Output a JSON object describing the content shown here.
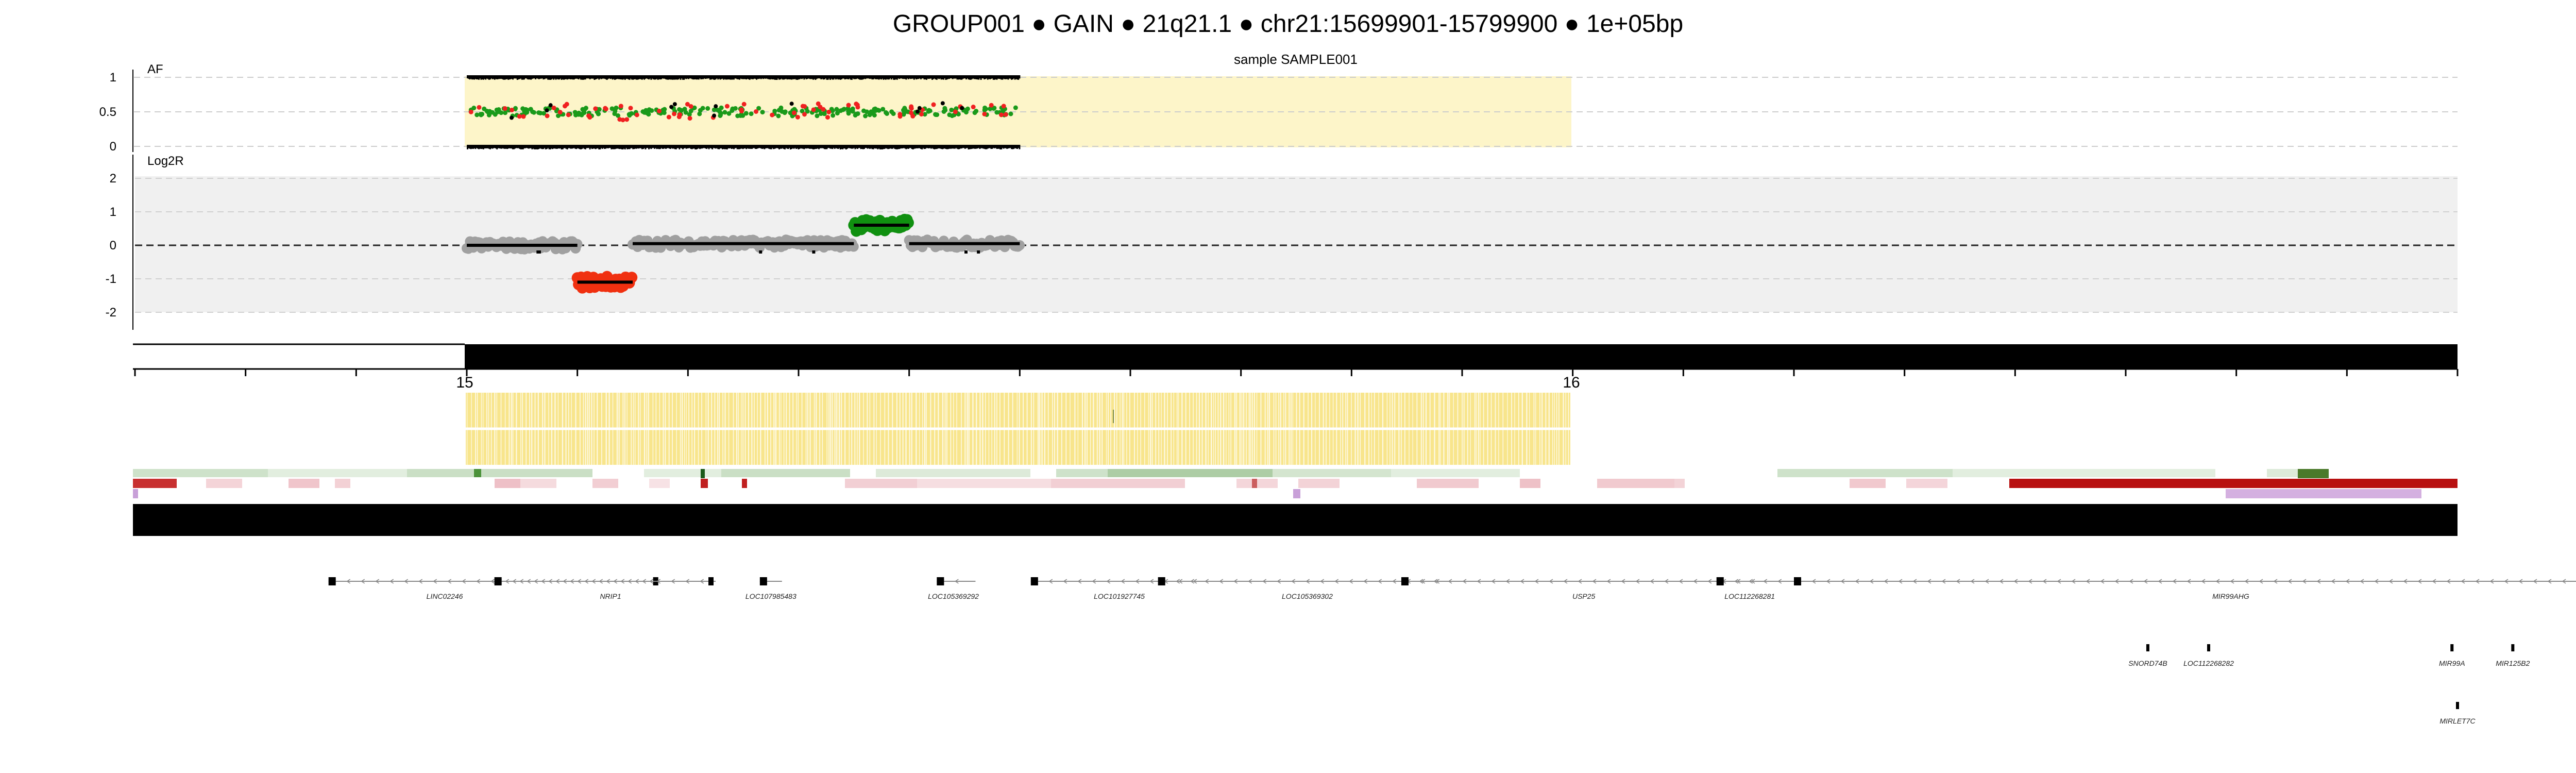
{
  "page": {
    "title": "GROUP001  ●  GAIN ● 21q21.1 ● chr21:15699901-15799900 ● 1e+05bp",
    "sample_label": "sample SAMPLE001"
  },
  "colors": {
    "af_band": "#fdf5c9",
    "af_green": "#1a9a1a",
    "af_red": "#f02020",
    "cn_neutral": "#a0a0a0",
    "cn_loss": "#f03010",
    "cn_gain": "#109010",
    "log2r_band": "#f0f0f0",
    "segment": "#000000",
    "bars_yellow": "#f8e58c"
  },
  "chart_data": [
    {
      "type": "scatter",
      "panel": "AF",
      "ylabel": "AF",
      "ylim": [
        0,
        1
      ],
      "yticks": [
        "1",
        "0.5",
        "0"
      ],
      "title": "sample SAMPLE001",
      "xlim": [
        14.4,
        18.6
      ],
      "region": [
        15.0,
        16.0
      ],
      "series": [
        {
          "color_key": "af_green",
          "mean": 0.5,
          "spread": 0.06
        },
        {
          "color_key": "af_red",
          "mean": 0.5,
          "spread": 0.12
        }
      ]
    },
    {
      "type": "scatter",
      "panel": "Log2R",
      "ylabel": "Log2R",
      "ylim": [
        -2.5,
        2.5
      ],
      "yticks": [
        "2",
        "1",
        "0",
        "-1",
        "-2"
      ],
      "xlim": [
        14.4,
        18.6
      ],
      "segments": [
        {
          "x": [
            15.0,
            15.2
          ],
          "y": 0.0,
          "state": "neutral"
        },
        {
          "x": [
            15.2,
            15.3
          ],
          "y": -1.1,
          "state": "loss"
        },
        {
          "x": [
            15.3,
            15.7
          ],
          "y": 0.05,
          "state": "neutral"
        },
        {
          "x": [
            15.7,
            15.8
          ],
          "y": 0.6,
          "state": "gain"
        },
        {
          "x": [
            15.8,
            16.0
          ],
          "y": 0.05,
          "state": "neutral"
        }
      ]
    }
  ],
  "axis": {
    "xlim": [
      14.4,
      18.6
    ],
    "region": [
      15.0,
      16.0
    ],
    "labeled_ticks": [
      "15",
      "16"
    ]
  },
  "genes": [
    {
      "name": "LINC02246",
      "x": 0.56,
      "row": 0
    },
    {
      "name": "NRIP1",
      "x": 0.86,
      "row": 0
    },
    {
      "name": "LOC107985483",
      "x": 1.15,
      "row": 0
    },
    {
      "name": "LOC105369292",
      "x": 1.48,
      "row": 0
    },
    {
      "name": "LOC101927745",
      "x": 1.78,
      "row": 0
    },
    {
      "name": "LOC105369302",
      "x": 2.12,
      "row": 0
    },
    {
      "name": "USP25",
      "x": 2.62,
      "row": 0
    },
    {
      "name": "LOC112268281",
      "x": 2.92,
      "row": 0
    },
    {
      "name": "MIR99AHG",
      "x": 3.79,
      "row": 0
    },
    {
      "name": "SNORD74B",
      "x": 3.64,
      "row": 1
    },
    {
      "name": "LOC112268282",
      "x": 3.75,
      "row": 1
    },
    {
      "name": "MIR99A",
      "x": 4.19,
      "row": 1
    },
    {
      "name": "MIR125B2",
      "x": 4.3,
      "row": 1
    },
    {
      "name": "MIRLET7C",
      "x": 4.2,
      "row": 2
    }
  ]
}
